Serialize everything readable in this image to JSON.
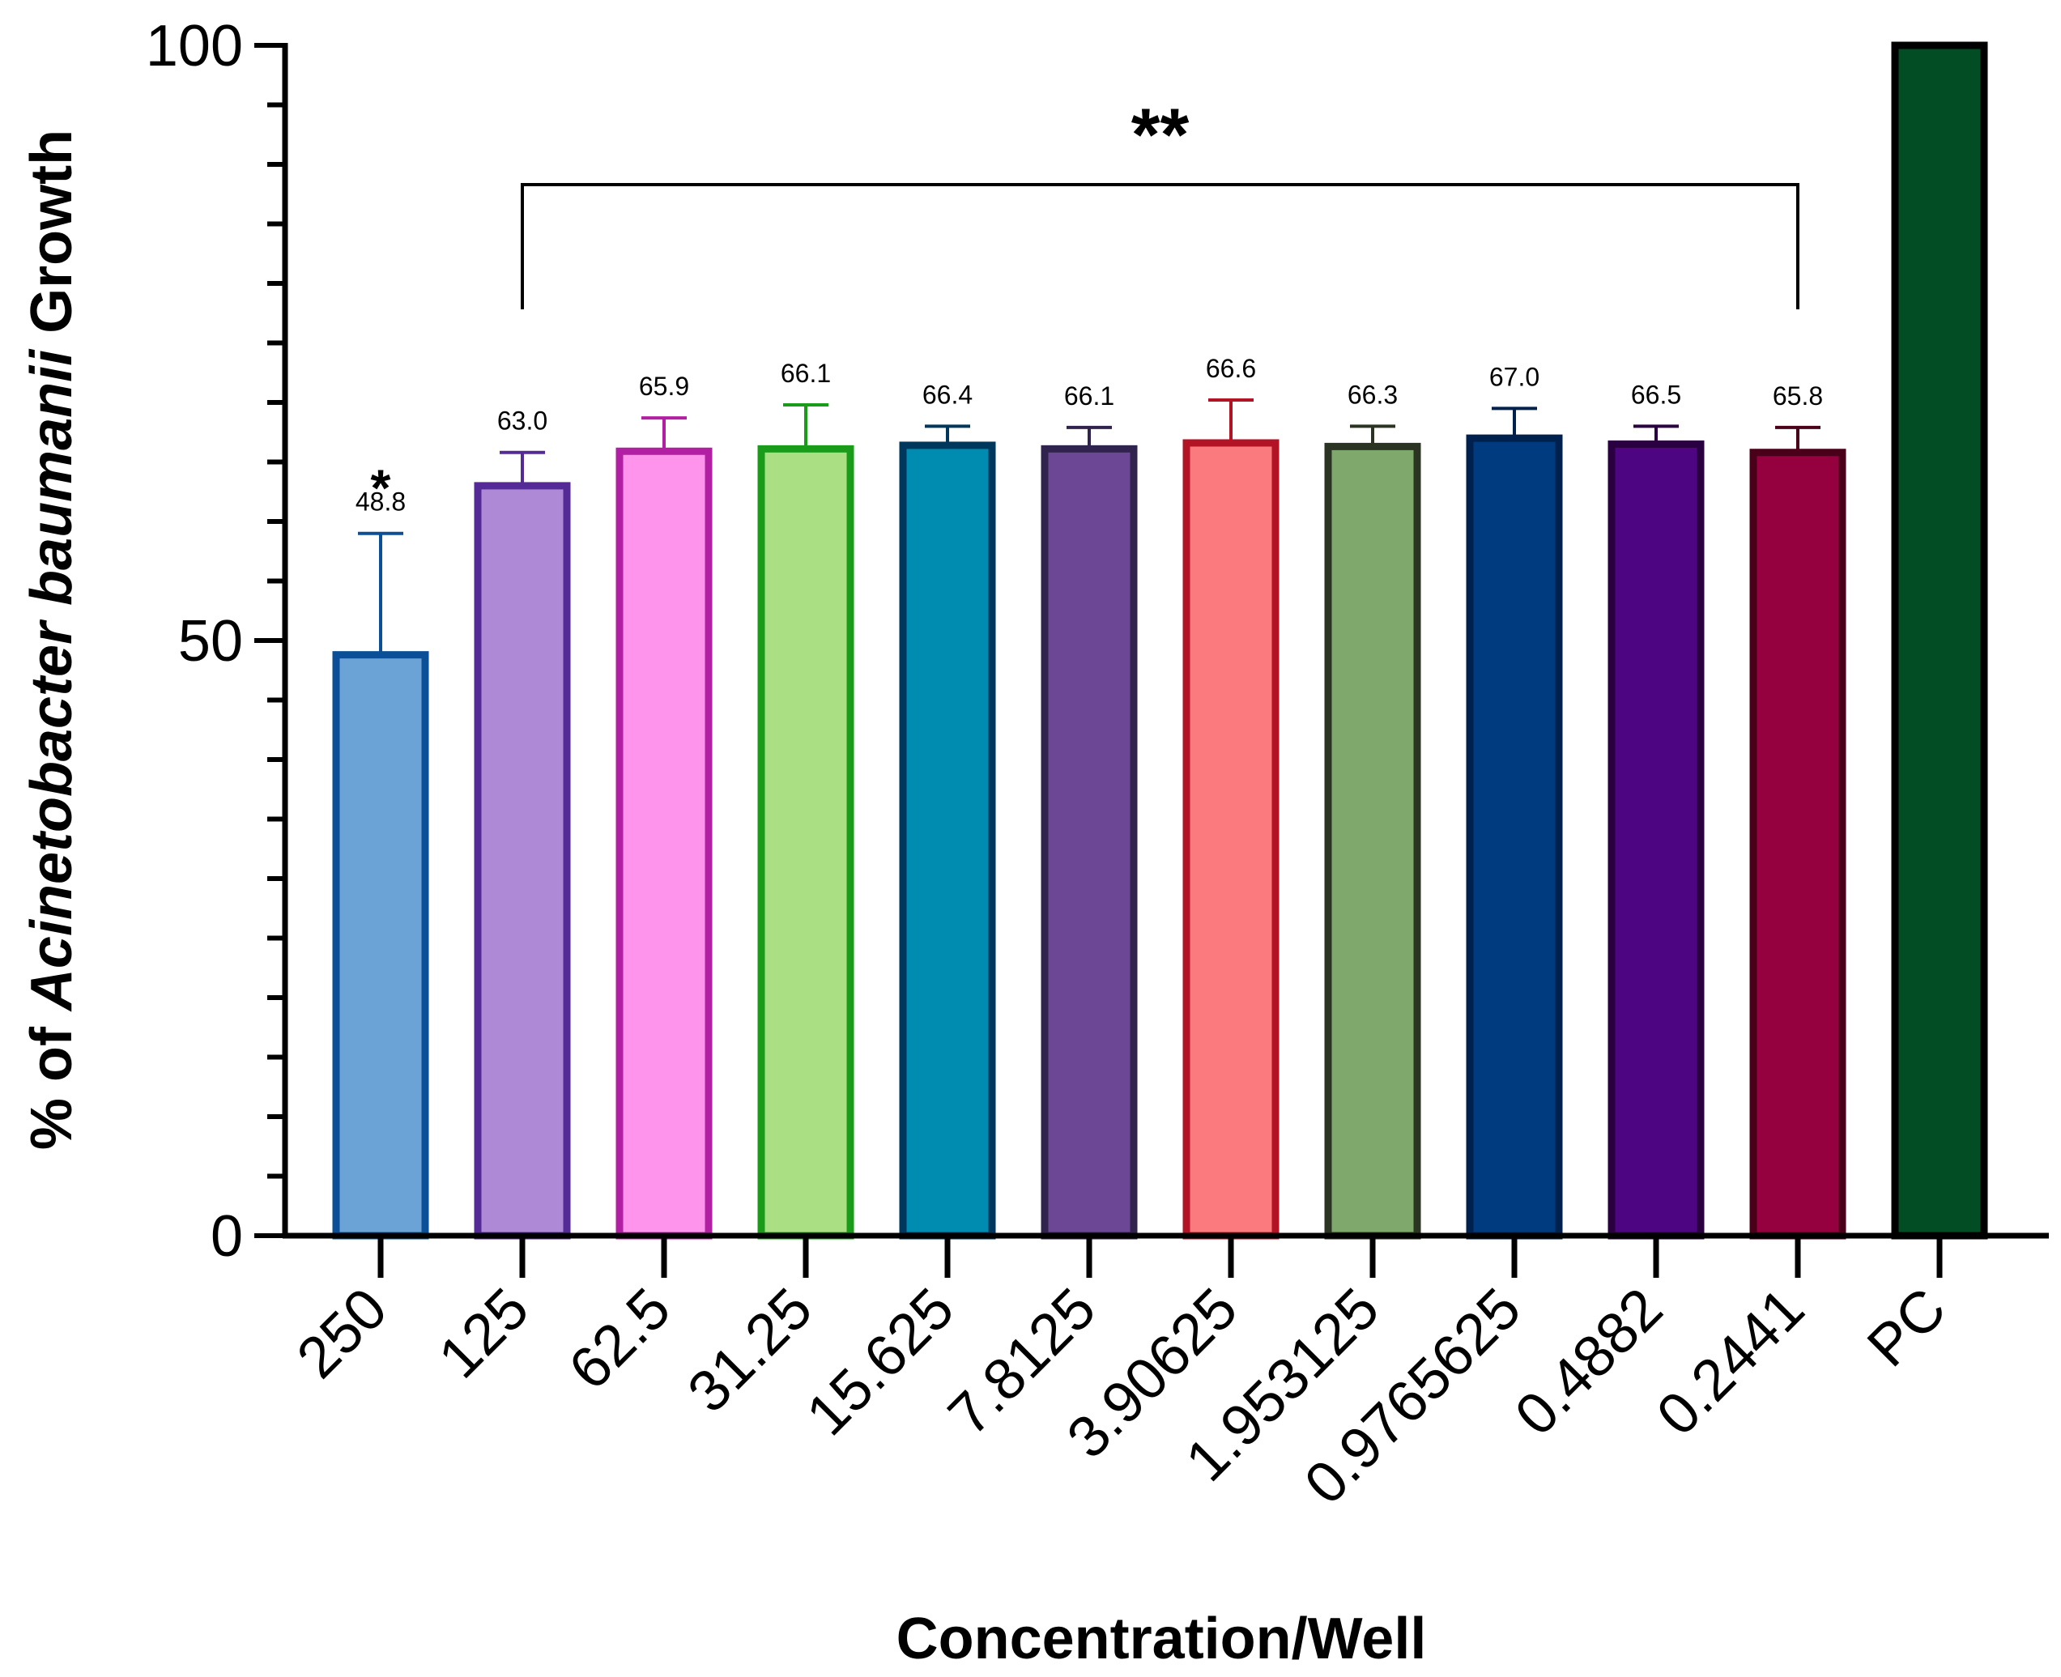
{
  "chart_data": {
    "type": "bar",
    "title": "",
    "xlabel": "Concentration/Well",
    "ylabel": {
      "prefix": "% of ",
      "italic": "Acinetobacter baumanii",
      "suffix": " Growth"
    },
    "ylim": [
      0,
      100
    ],
    "yticks": [
      0,
      50,
      100
    ],
    "y_minor_step": 5,
    "categories": [
      "250",
      "125",
      "62.5",
      "31.25",
      "15.625",
      "7.8125",
      "3.90625",
      "1.953125",
      "0.9765625",
      "0.4882",
      "0.2441",
      "PC"
    ],
    "values": [
      48.8,
      63.0,
      65.9,
      66.1,
      66.4,
      66.1,
      66.6,
      66.3,
      67.0,
      66.5,
      65.8,
      100
    ],
    "value_labels": [
      "48.8",
      "63.0",
      "65.9",
      "66.1",
      "66.4",
      "66.1",
      "66.6",
      "66.3",
      "67.0",
      "66.5",
      "65.8",
      null
    ],
    "error_upper": [
      59.0,
      65.8,
      68.7,
      69.8,
      68.0,
      67.9,
      70.2,
      68.0,
      69.5,
      68.0,
      67.9,
      null
    ],
    "fill_colors": [
      "#6ca3d6",
      "#ae8ad6",
      "#ff94ec",
      "#abdf84",
      "#008bb0",
      "#6b4796",
      "#fa7a7e",
      "#7fa86d",
      "#003b80",
      "#4e0582",
      "#95003f",
      "#024d23"
    ],
    "edge_colors": [
      "#0b4f96",
      "#532a96",
      "#b31fa3",
      "#1a9c1a",
      "#00375c",
      "#30234d",
      "#b21425",
      "#2b3322",
      "#00204d",
      "#2a0040",
      "#4a0018",
      "#000000"
    ],
    "annotations": {
      "single_star": {
        "text": "*",
        "category_index": 0
      },
      "bracket": {
        "text": "**",
        "from_index": 1,
        "to_index": 10
      }
    }
  }
}
